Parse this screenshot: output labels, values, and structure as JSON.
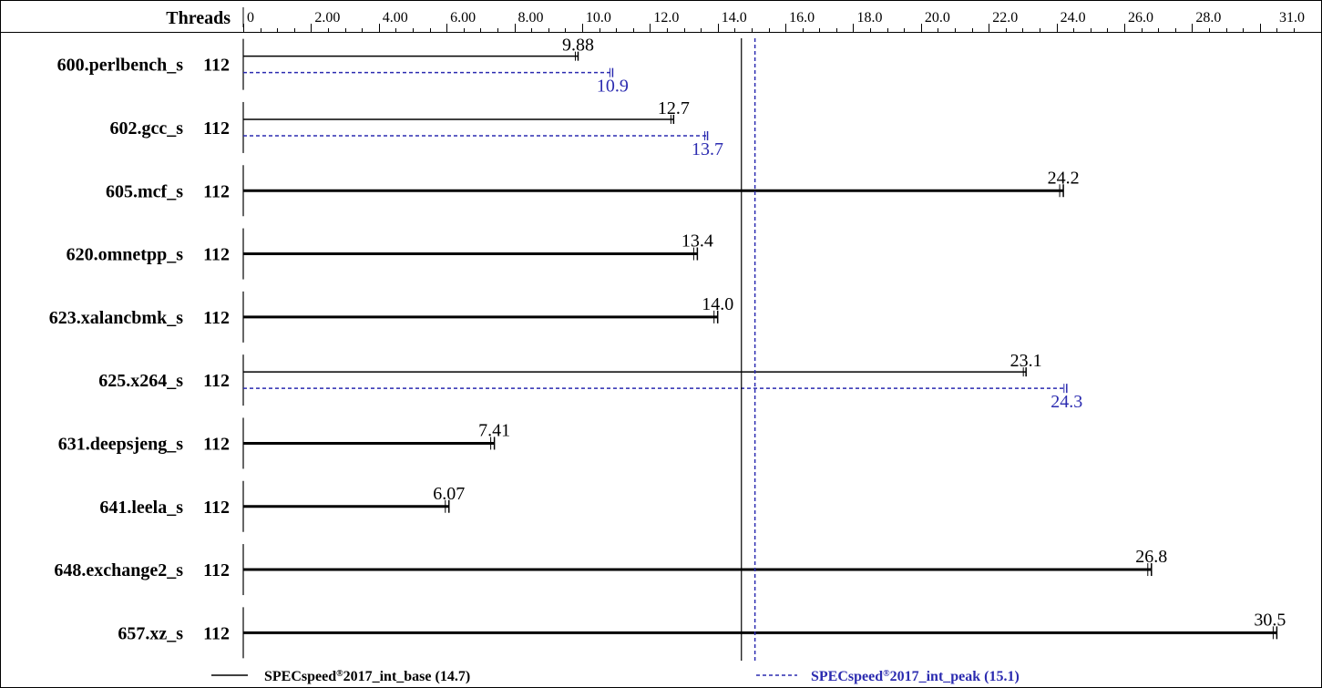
{
  "chart_data": {
    "type": "bar",
    "orientation": "horizontal",
    "threads_header": "Threads",
    "x_ticks": [
      "0",
      "2.00",
      "4.00",
      "6.00",
      "8.00",
      "10.0",
      "12.0",
      "14.0",
      "16.0",
      "18.0",
      "20.0",
      "22.0",
      "24.0",
      "26.0",
      "28.0",
      "31.0"
    ],
    "xlim": [
      0,
      31.0
    ],
    "axis_position": "top",
    "grid": false,
    "legend_position": "bottom",
    "colors": {
      "base": "#000000",
      "peak": "#2b2bb0"
    },
    "benchmarks": [
      {
        "name": "600.perlbench_s",
        "threads": "112",
        "base": 9.88,
        "base_label": "9.88",
        "peak": 10.9,
        "peak_label": "10.9"
      },
      {
        "name": "602.gcc_s",
        "threads": "112",
        "base": 12.7,
        "base_label": "12.7",
        "peak": 13.7,
        "peak_label": "13.7"
      },
      {
        "name": "605.mcf_s",
        "threads": "112",
        "base": 24.2,
        "base_label": "24.2",
        "peak": null,
        "peak_label": null
      },
      {
        "name": "620.omnetpp_s",
        "threads": "112",
        "base": 13.4,
        "base_label": "13.4",
        "peak": null,
        "peak_label": null
      },
      {
        "name": "623.xalancbmk_s",
        "threads": "112",
        "base": 14.0,
        "base_label": "14.0",
        "peak": null,
        "peak_label": null
      },
      {
        "name": "625.x264_s",
        "threads": "112",
        "base": 23.1,
        "base_label": "23.1",
        "peak": 24.3,
        "peak_label": "24.3"
      },
      {
        "name": "631.deepsjeng_s",
        "threads": "112",
        "base": 7.41,
        "base_label": "7.41",
        "peak": null,
        "peak_label": null
      },
      {
        "name": "641.leela_s",
        "threads": "112",
        "base": 6.07,
        "base_label": "6.07",
        "peak": null,
        "peak_label": null
      },
      {
        "name": "648.exchange2_s",
        "threads": "112",
        "base": 26.8,
        "base_label": "26.8",
        "peak": null,
        "peak_label": null
      },
      {
        "name": "657.xz_s",
        "threads": "112",
        "base": 30.5,
        "base_label": "30.5",
        "peak": null,
        "peak_label": null
      }
    ],
    "summary": {
      "base": {
        "value": 14.7,
        "label_main": "SPECspeed",
        "label_sup": "®",
        "label_rest": "2017_int_base (14.7)"
      },
      "peak": {
        "value": 15.1,
        "label_main": "SPECspeed",
        "label_sup": "®",
        "label_rest": "2017_int_peak (15.1)"
      }
    }
  }
}
